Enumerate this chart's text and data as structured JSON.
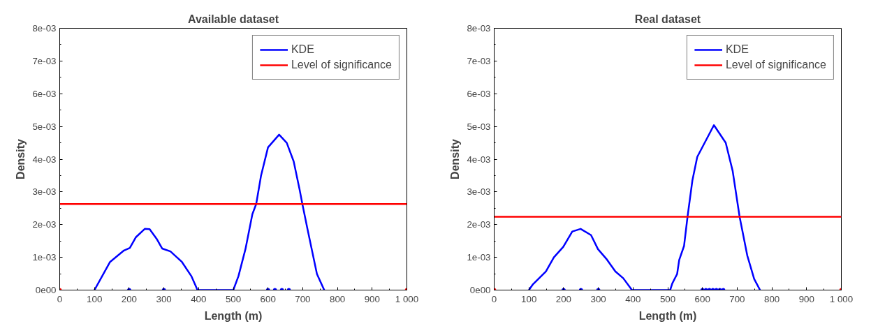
{
  "chart_data": [
    {
      "type": "line",
      "title": "Available dataset",
      "xlabel": "Length (m)",
      "ylabel": "Density",
      "xlim": [
        0,
        1000
      ],
      "ylim": [
        0,
        0.008
      ],
      "xticks": [
        0,
        100,
        200,
        300,
        400,
        500,
        600,
        700,
        800,
        900,
        {
          "value": 1000,
          "label": "1 000"
        },
        {
          "value": 50,
          "label": null
        },
        {
          "value": 150,
          "label": null
        },
        {
          "value": 250,
          "label": null
        },
        {
          "value": 350,
          "label": null
        },
        {
          "value": 450,
          "label": null
        },
        {
          "value": 550,
          "label": null
        },
        {
          "value": 650,
          "label": null
        },
        {
          "value": 750,
          "label": null
        },
        {
          "value": 850,
          "label": null
        },
        {
          "value": 950,
          "label": null
        }
      ],
      "yticks": [
        {
          "value": 0,
          "label": "0e00"
        },
        {
          "value": 0.001,
          "label": "1e-03"
        },
        {
          "value": 0.002,
          "label": "2e-03"
        },
        {
          "value": 0.003,
          "label": "3e-03"
        },
        {
          "value": 0.004,
          "label": "4e-03"
        },
        {
          "value": 0.005,
          "label": "5e-03"
        },
        {
          "value": 0.006,
          "label": "6e-03"
        },
        {
          "value": 0.007,
          "label": "7e-03"
        },
        {
          "value": 0.008,
          "label": "8e-03"
        },
        {
          "value": 0.0005,
          "label": null
        },
        {
          "value": 0.0015,
          "label": null
        },
        {
          "value": 0.0025,
          "label": null
        },
        {
          "value": 0.0035,
          "label": null
        },
        {
          "value": 0.0045,
          "label": null
        },
        {
          "value": 0.0055,
          "label": null
        },
        {
          "value": 0.0065,
          "label": null
        },
        {
          "value": 0.0075,
          "label": null
        }
      ],
      "grid": false,
      "legend": "top right",
      "series": [
        {
          "name": "KDE",
          "color": "#0000ff",
          "x": [
            100,
            145,
            185,
            202,
            219,
            245,
            259,
            279,
            295,
            319,
            352,
            379,
            397,
            400,
            500,
            515,
            535,
            555,
            566,
            580,
            600,
            632,
            654,
            674,
            691,
            699,
            714,
            741,
            762
          ],
          "values": [
            0,
            0.00086,
            0.00121,
            0.00129,
            0.00161,
            0.00187,
            0.00186,
            0.00157,
            0.00127,
            0.00118,
            0.00086,
            0.00043,
            0,
            0,
            0,
            0.00043,
            0.00125,
            0.00232,
            0.00263,
            0.0035,
            0.00436,
            0.00475,
            0.0045,
            0.00393,
            0.00307,
            0.00263,
            0.00185,
            0.00049,
            0
          ]
        },
        {
          "name": "Level of significance",
          "color": "#ff0000",
          "x": [
            0,
            1000
          ],
          "values": [
            0.00263,
            0.00263
          ]
        },
        {
          "color": "#0000ff",
          "type": "scatter",
          "marker": "circle",
          "x": [
            200,
            300,
            600,
            620,
            640,
            660
          ],
          "values": [
            0,
            0,
            0,
            0,
            0,
            0
          ]
        },
        {
          "color": "#ff0000",
          "type": "scatter",
          "marker": "circle",
          "x": [
            0,
            1000
          ],
          "values": [
            0,
            0
          ]
        }
      ]
    },
    {
      "type": "line",
      "title": "Real dataset",
      "xlabel": "Length (m)",
      "ylabel": "Density",
      "xlim": [
        0,
        1000
      ],
      "ylim": [
        0,
        0.008
      ],
      "xticks": [
        0,
        100,
        200,
        300,
        400,
        500,
        600,
        700,
        800,
        900,
        {
          "value": 1000,
          "label": "1 000"
        },
        {
          "value": 50,
          "label": null
        },
        {
          "value": 150,
          "label": null
        },
        {
          "value": 250,
          "label": null
        },
        {
          "value": 350,
          "label": null
        },
        {
          "value": 450,
          "label": null
        },
        {
          "value": 550,
          "label": null
        },
        {
          "value": 650,
          "label": null
        },
        {
          "value": 750,
          "label": null
        },
        {
          "value": 850,
          "label": null
        },
        {
          "value": 950,
          "label": null
        }
      ],
      "yticks": [
        {
          "value": 0,
          "label": "0e00"
        },
        {
          "value": 0.001,
          "label": "1e-03"
        },
        {
          "value": 0.002,
          "label": "2e-03"
        },
        {
          "value": 0.003,
          "label": "3e-03"
        },
        {
          "value": 0.004,
          "label": "4e-03"
        },
        {
          "value": 0.005,
          "label": "5e-03"
        },
        {
          "value": 0.006,
          "label": "6e-03"
        },
        {
          "value": 0.007,
          "label": "7e-03"
        },
        {
          "value": 0.008,
          "label": "8e-03"
        },
        {
          "value": 0.0005,
          "label": null
        },
        {
          "value": 0.0015,
          "label": null
        },
        {
          "value": 0.0025,
          "label": null
        },
        {
          "value": 0.0035,
          "label": null
        },
        {
          "value": 0.0045,
          "label": null
        },
        {
          "value": 0.0055,
          "label": null
        },
        {
          "value": 0.0065,
          "label": null
        },
        {
          "value": 0.0075,
          "label": null
        }
      ],
      "grid": false,
      "legend": "top right",
      "series": [
        {
          "name": "KDE",
          "color": "#0000ff",
          "x": [
            100,
            112,
            149,
            172,
            199,
            225,
            249,
            279,
            299,
            325,
            349,
            372,
            397,
            400,
            507,
            513,
            527,
            533,
            547,
            557,
            571,
            585,
            633,
            667,
            687,
            707,
            729,
            749,
            766
          ],
          "values": [
            0,
            0.00018,
            0.00057,
            0.001,
            0.00132,
            0.00179,
            0.00187,
            0.00168,
            0.00125,
            0.00093,
            0.00057,
            0.00036,
            0,
            0,
            0,
            0.0002,
            0.00049,
            0.00092,
            0.00135,
            0.00224,
            0.00335,
            0.00407,
            0.00504,
            0.0045,
            0.00364,
            0.00224,
            0.00106,
            0.00034,
            0
          ]
        },
        {
          "name": "Level of significance",
          "color": "#ff0000",
          "x": [
            0,
            1000
          ],
          "values": [
            0.00224,
            0.00224
          ]
        },
        {
          "color": "#0000ff",
          "type": "scatter",
          "marker": "circle",
          "x": [
            200,
            250,
            300,
            600,
            610,
            620,
            630,
            640,
            650,
            660
          ],
          "values": [
            0,
            0,
            0,
            0,
            0,
            0,
            0,
            0,
            0,
            0
          ]
        },
        {
          "color": "#ff0000",
          "type": "scatter",
          "marker": "circle",
          "x": [
            0,
            1000
          ],
          "values": [
            0,
            0
          ]
        }
      ]
    }
  ]
}
